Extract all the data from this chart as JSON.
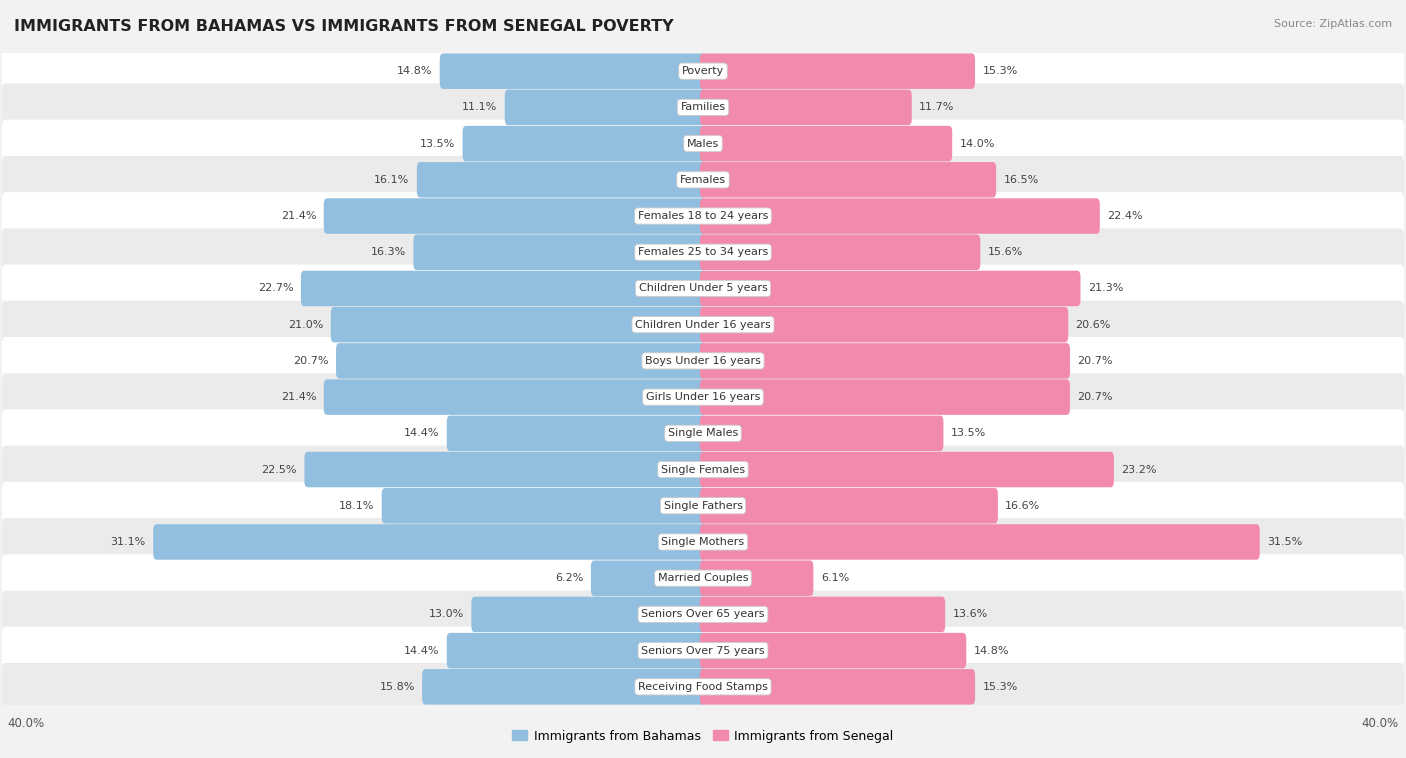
{
  "title": "IMMIGRANTS FROM BAHAMAS VS IMMIGRANTS FROM SENEGAL POVERTY",
  "source": "Source: ZipAtlas.com",
  "categories": [
    "Poverty",
    "Families",
    "Males",
    "Females",
    "Females 18 to 24 years",
    "Females 25 to 34 years",
    "Children Under 5 years",
    "Children Under 16 years",
    "Boys Under 16 years",
    "Girls Under 16 years",
    "Single Males",
    "Single Females",
    "Single Fathers",
    "Single Mothers",
    "Married Couples",
    "Seniors Over 65 years",
    "Seniors Over 75 years",
    "Receiving Food Stamps"
  ],
  "bahamas_values": [
    14.8,
    11.1,
    13.5,
    16.1,
    21.4,
    16.3,
    22.7,
    21.0,
    20.7,
    21.4,
    14.4,
    22.5,
    18.1,
    31.1,
    6.2,
    13.0,
    14.4,
    15.8
  ],
  "senegal_values": [
    15.3,
    11.7,
    14.0,
    16.5,
    22.4,
    15.6,
    21.3,
    20.6,
    20.7,
    20.7,
    13.5,
    23.2,
    16.6,
    31.5,
    6.1,
    13.6,
    14.8,
    15.3
  ],
  "bahamas_color": "#92bfe0",
  "senegal_color": "#f28bab",
  "bahamas_label": "Immigrants from Bahamas",
  "senegal_label": "Immigrants from Senegal",
  "axis_max": 40.0,
  "background_color": "#f2f2f2",
  "row_bg_light": "#ffffff",
  "row_bg_dark": "#ebebeb",
  "label_fontsize": 8.0,
  "value_fontsize": 8.0,
  "title_fontsize": 11.5
}
